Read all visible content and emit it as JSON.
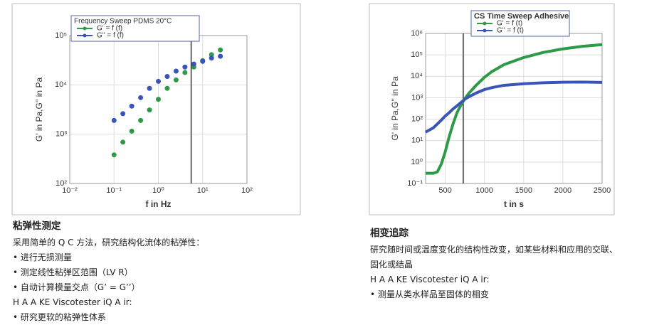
{
  "panels": [
    {
      "chart": {
        "type": "scatter",
        "title": "Frequency Sweep PDMS 20°C",
        "xlabel": "f in Hz",
        "ylabel": "G' in Pa,G'' in Pa",
        "logx": true,
        "logy": true,
        "grid": true,
        "xlim": [
          0.01,
          100
        ],
        "ylim": [
          100,
          100000
        ],
        "xticks": [
          {
            "value": 0.01,
            "label": "10⁻²"
          },
          {
            "value": 0.1,
            "label": "10⁻¹"
          },
          {
            "value": 1,
            "label": "10⁰"
          },
          {
            "value": 10,
            "label": "10¹"
          },
          {
            "value": 100,
            "label": "10²"
          }
        ],
        "yticks": [
          {
            "value": 100,
            "label": "10²"
          },
          {
            "value": 1000,
            "label": "10³"
          },
          {
            "value": 10000,
            "label": "10⁴"
          },
          {
            "value": 100000,
            "label": "10⁵"
          }
        ],
        "x": [
          0.1,
          0.158,
          0.251,
          0.398,
          0.631,
          1,
          1.585,
          2.512,
          3.981,
          6.31,
          10,
          15.85,
          25.12
        ],
        "marker_x": 5.5,
        "series": [
          {
            "name": "G' = f (f)",
            "color": "#2e9a48",
            "values": [
              380,
              690,
              1150,
              1900,
              3100,
              5100,
              8500,
              12600,
              17800,
              23000,
              31000,
              41000,
              51000
            ]
          },
          {
            "name": "G'' = f (f)",
            "color": "#3a55b8",
            "values": [
              1900,
              2600,
              3700,
              5500,
              8500,
              11800,
              14800,
              19000,
              23000,
              26500,
              30000,
              35000,
              38000
            ]
          }
        ]
      },
      "heading": "粘弹性测定",
      "lines": [
        "采用简单的 Q C 方法，研究结构化流体的粘弹性：",
        "• 进行无损测量",
        "• 测定线性粘弹区范围（LV R）",
        "• 自动计算模量交点（G’ = G’’）",
        "H A A KE Viscotester iQ A ir:",
        "• 研究更软的粘弹性体系"
      ]
    },
    {
      "chart": {
        "type": "line",
        "title": "CS Time Sweep Adhesive",
        "xlabel": "t in s",
        "ylabel": "G' in Pa,G'' in Pa",
        "logx": false,
        "logy": true,
        "grid": true,
        "xlim": [
          250,
          2500
        ],
        "ylim": [
          0.1,
          1000000
        ],
        "xticks": [
          500,
          1000,
          1500,
          2000,
          2500
        ],
        "yticks": [
          {
            "value": 0.1,
            "label": "10⁻¹"
          },
          {
            "value": 1,
            "label": "10⁰"
          },
          {
            "value": 10,
            "label": "10¹"
          },
          {
            "value": 100,
            "label": "10²"
          },
          {
            "value": 1000,
            "label": "10³"
          },
          {
            "value": 10000,
            "label": "10⁴"
          },
          {
            "value": 100000,
            "label": "10⁵"
          },
          {
            "value": 1000000,
            "label": "10⁶"
          }
        ],
        "x": [
          250,
          350,
          400,
          450,
          500,
          550,
          600,
          650,
          700,
          750,
          800,
          900,
          1000,
          1100,
          1250,
          1500,
          1750,
          2000,
          2250,
          2500
        ],
        "marker_x": 730,
        "series": [
          {
            "name": "G' = f (t)",
            "color": "#2e9a48",
            "values": [
              0.3,
              0.3,
              0.35,
              0.8,
              3,
              15,
              60,
              200,
              450,
              900,
              1600,
              4000,
              9000,
              17000,
              35000,
              75000,
              130000,
              190000,
              250000,
              300000
            ]
          },
          {
            "name": "G'' = f (t)",
            "color": "#3a55b8",
            "values": [
              25,
              40,
              60,
              90,
              140,
              200,
              300,
              420,
              600,
              850,
              1100,
              1700,
              2400,
              3000,
              3800,
              4500,
              5000,
              5300,
              5400,
              5200
            ]
          }
        ]
      },
      "heading": "相变追踪",
      "lines": [
        "研究随时间或温度变化的结构性改变，如某些材料和应用的交联、",
        "固化或结晶",
        "H A A KE Viscotester iQ A ir:",
        "• 测量从类水样品至固体的相变"
      ]
    }
  ]
}
